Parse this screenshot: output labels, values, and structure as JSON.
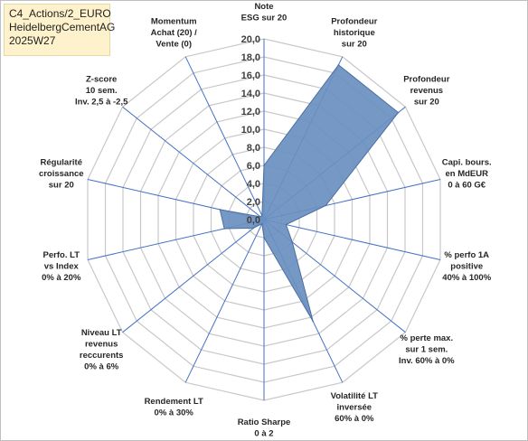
{
  "title_box": {
    "line1": "C4_Actions/2_EURO",
    "line2": "HeidelbergCementAG",
    "line3": "2025W27"
  },
  "chart_data": {
    "type": "radar",
    "rmax": 20,
    "ticks": [
      "0,0",
      "2,0",
      "4,0",
      "6,0",
      "8,0",
      "10,0",
      "12,0",
      "14,0",
      "16,0",
      "18,0",
      "20,0"
    ],
    "axes": [
      [
        "Note",
        "ESG sur 20"
      ],
      [
        "Profondeur",
        "historique",
        "sur 20"
      ],
      [
        "Profondeur",
        "revenus",
        "sur 20"
      ],
      [
        "Capi. bours.",
        "en MdEUR",
        "0 à 60 G€"
      ],
      [
        "% perfo 1A",
        "positive",
        "40% à 100%"
      ],
      [
        "% perte max.",
        "sur 1 sem.",
        "Inv. 60% à 0%"
      ],
      [
        "Volatilité LT",
        "inversée",
        "60% à 0%"
      ],
      [
        "Ratio Sharpe",
        "0 à 2"
      ],
      [
        "Rendement LT",
        "0% à 30%"
      ],
      [
        "Niveau LT",
        "revenus",
        "reccurents",
        "0% à 6%"
      ],
      [
        "Perfo. LT",
        "vs Index",
        "0% à 20%"
      ],
      [
        "Régularité",
        "croissance",
        "sur 20"
      ],
      [
        "Z-score",
        "10 sem.",
        "Inv. 2,5 à -2,5"
      ],
      [
        "Momentum",
        "Achat (20) /",
        "Vente (0)"
      ]
    ],
    "series": [
      {
        "values": [
          6.0,
          19.0,
          19.0,
          7.0,
          2.5,
          4.0,
          12.5,
          2.0,
          0.5,
          1.5,
          4.5,
          5.0,
          0.5,
          0.5
        ],
        "fill": "#6a8fc0",
        "stroke": "#4a6fa0"
      }
    ],
    "grid_color": "#c8c8c8",
    "spoke_color": "#4472c4"
  }
}
